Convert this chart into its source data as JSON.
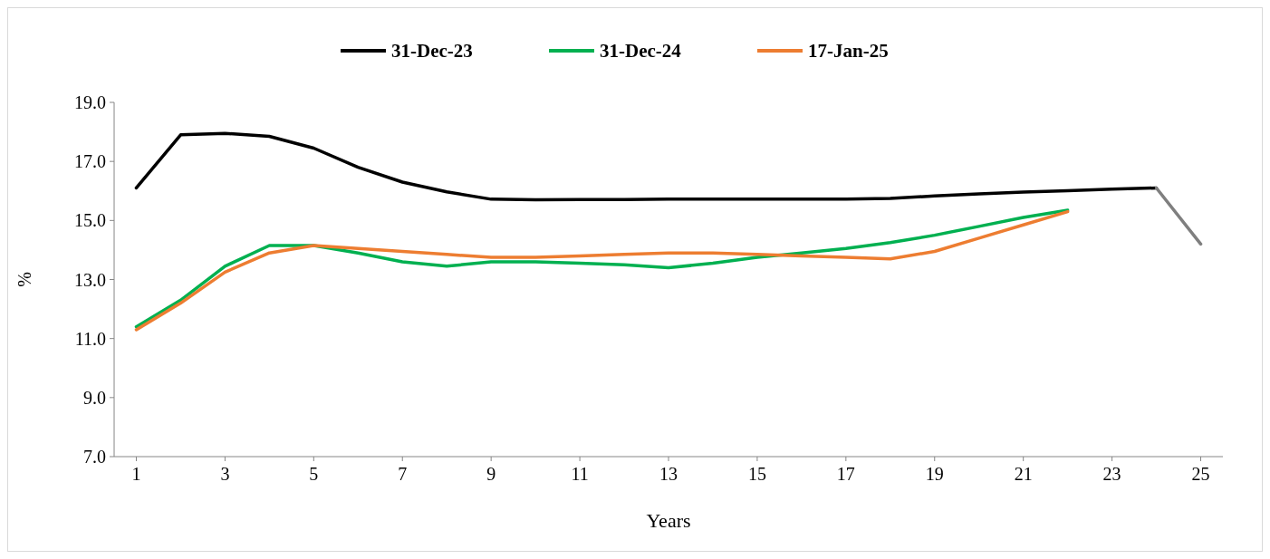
{
  "chart_data": {
    "type": "line",
    "xlabel": "Years",
    "ylabel": "%",
    "x": [
      1,
      2,
      3,
      4,
      5,
      6,
      7,
      8,
      9,
      10,
      11,
      12,
      13,
      14,
      15,
      16,
      17,
      18,
      19,
      20,
      21,
      22,
      23,
      24
    ],
    "series": [
      {
        "name": "31-Dec-23",
        "color": "#000000",
        "values": [
          16.1,
          17.9,
          17.95,
          17.85,
          17.45,
          16.8,
          16.3,
          15.97,
          15.72,
          15.7,
          15.71,
          15.71,
          15.72,
          15.72,
          15.72,
          15.72,
          15.72,
          15.75,
          15.83,
          15.9,
          15.96,
          16.01,
          16.06,
          16.1
        ]
      },
      {
        "name": "31-Dec-24",
        "color": "#00b050",
        "values": [
          11.4,
          12.3,
          13.45,
          14.15,
          14.15,
          13.9,
          13.6,
          13.45,
          13.6,
          13.6,
          13.55,
          13.5,
          13.4,
          13.55,
          13.75,
          13.9,
          14.05,
          14.25,
          14.5,
          14.8,
          15.1,
          15.35,
          null,
          null
        ]
      },
      {
        "name": "17-Jan-25",
        "color": "#ed7d31",
        "values": [
          11.3,
          12.2,
          13.25,
          13.9,
          14.15,
          14.05,
          13.95,
          13.85,
          13.75,
          13.75,
          13.8,
          13.85,
          13.9,
          13.9,
          13.85,
          13.8,
          13.75,
          13.7,
          13.95,
          14.4,
          14.85,
          15.3,
          null,
          null
        ]
      },
      {
        "color": "#7f7f7f",
        "x": [
          24,
          25
        ],
        "values": [
          16.1,
          14.2
        ]
      }
    ],
    "xlim": [
      0.5,
      25.5
    ],
    "xticks": [
      1,
      3,
      5,
      7,
      9,
      11,
      13,
      15,
      17,
      19,
      21,
      23,
      25
    ],
    "ylim": [
      7,
      19
    ],
    "yticks": [
      {
        "value": 7,
        "label": "7.0"
      },
      {
        "value": 9,
        "label": "9.0"
      },
      {
        "value": 11,
        "label": "11.0"
      },
      {
        "value": 13,
        "label": "13.0"
      },
      {
        "value": 15,
        "label": "15.0"
      },
      {
        "value": 17,
        "label": "17.0"
      },
      {
        "value": 19,
        "label": "19.0"
      }
    ],
    "grid": false,
    "legend": "top",
    "marker": "none",
    "line_style": "solid"
  }
}
